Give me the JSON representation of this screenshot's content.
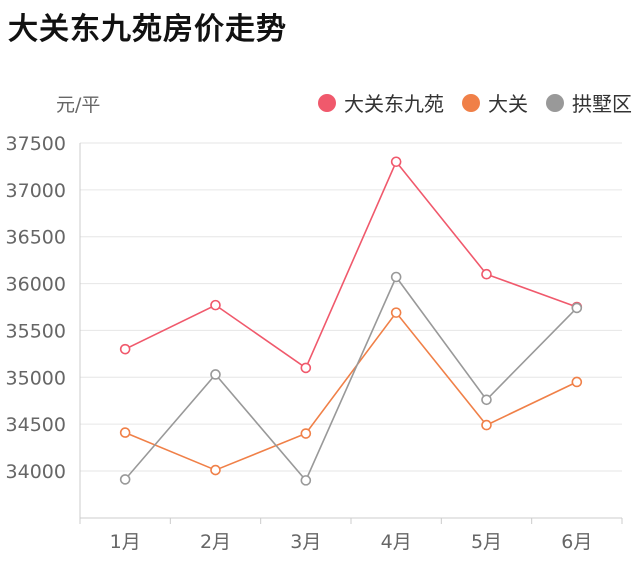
{
  "title": "大关东九苑房价走势",
  "chart_data": {
    "type": "line",
    "unit_label": "元/平",
    "categories": [
      "1月",
      "2月",
      "3月",
      "4月",
      "5月",
      "6月"
    ],
    "y_ticks": [
      "37500",
      "37000",
      "36500",
      "36000",
      "35500",
      "35000",
      "34500",
      "34000"
    ],
    "ylim": [
      33500,
      37500
    ],
    "grid": true,
    "legend_position": "top-right",
    "series": [
      {
        "name": "大关东九苑",
        "color": "#f0596c",
        "values": [
          35300,
          35770,
          35100,
          37300,
          36100,
          35750
        ]
      },
      {
        "name": "大关",
        "color": "#f08048",
        "values": [
          34410,
          34010,
          34400,
          35690,
          34490,
          34950
        ]
      },
      {
        "name": "拱墅区",
        "color": "#999999",
        "values": [
          33910,
          35030,
          33900,
          36070,
          34760,
          35740
        ]
      }
    ]
  }
}
